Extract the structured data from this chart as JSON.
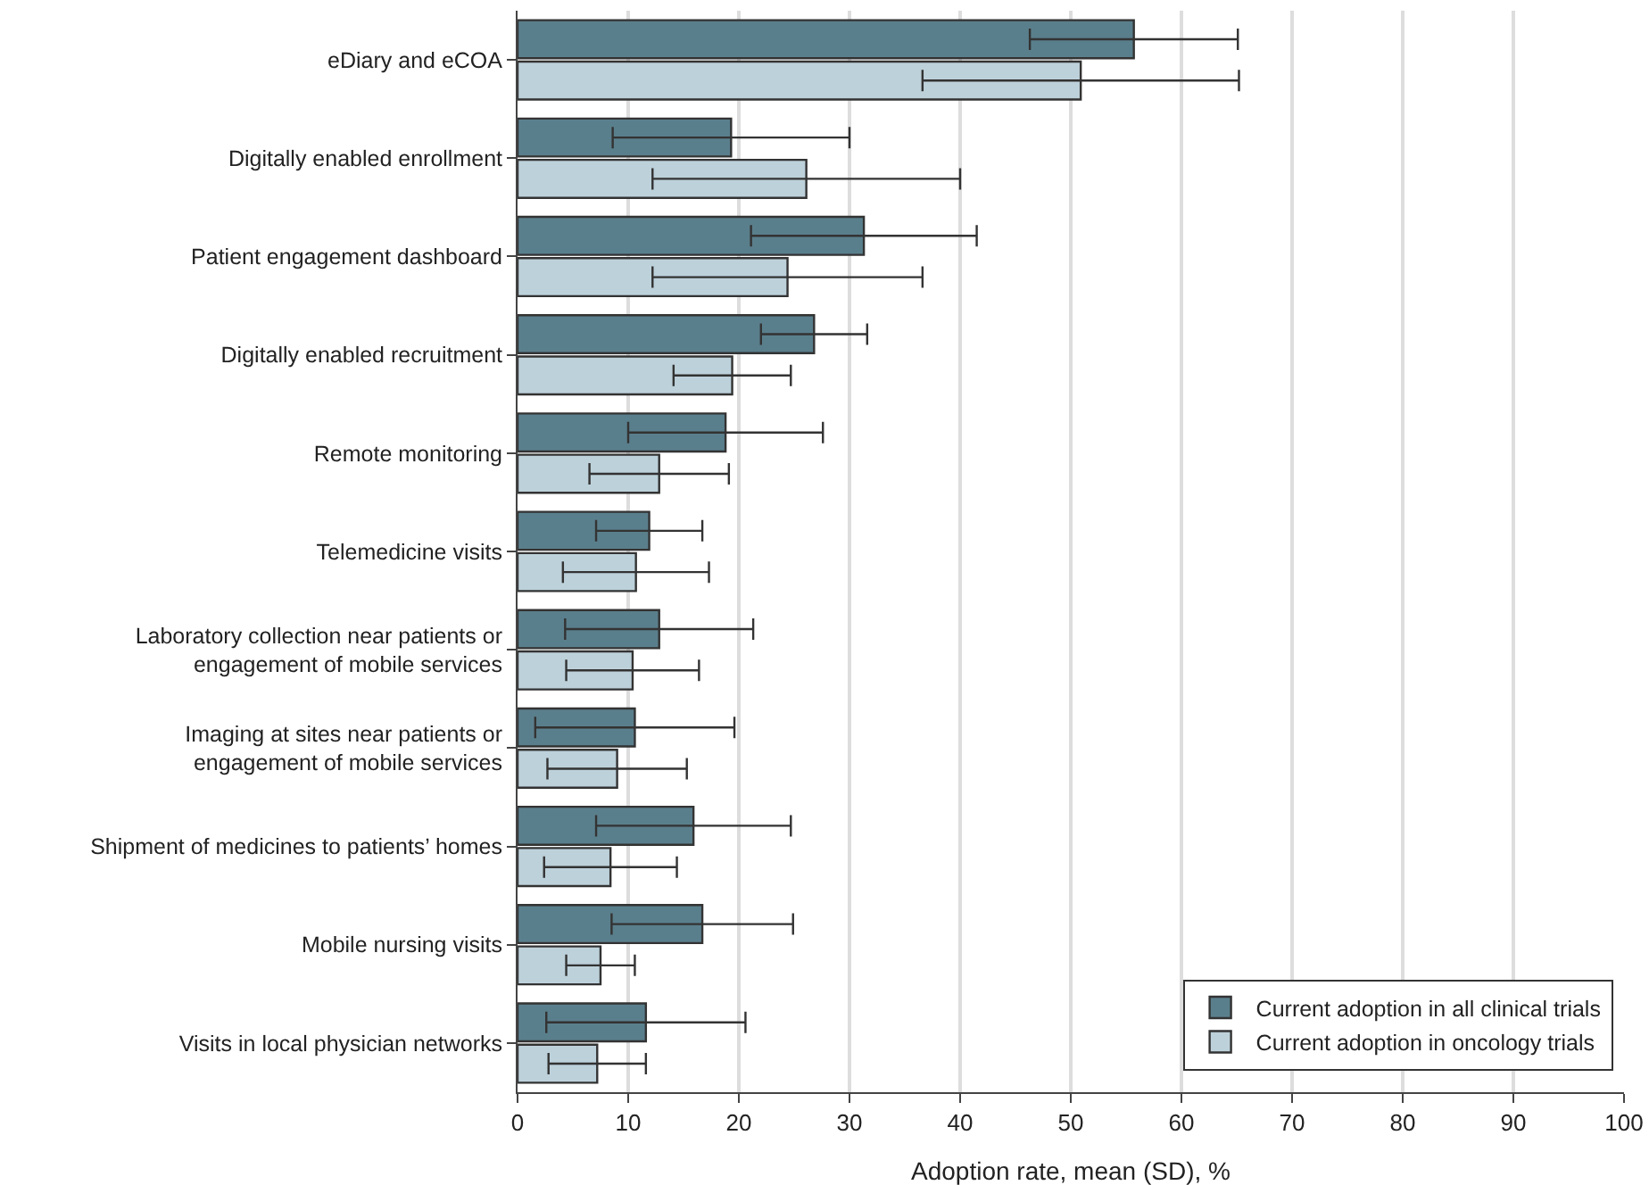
{
  "chart_data": {
    "type": "bar",
    "orientation": "horizontal",
    "xlabel": "Adoption rate, mean (SD), %",
    "categories": [
      "eDiary and eCOA",
      "Digitally enabled enrollment",
      "Patient engagement dashboard",
      "Digitally enabled recruitment",
      "Remote monitoring",
      "Telemedicine visits",
      "Laboratory collection near patients or engagement of mobile services",
      "Imaging at sites near patients or engagement of mobile services",
      "Shipment of medicines to patients’ homes",
      "Mobile nursing visits",
      "Visits in local physician networks"
    ],
    "series": [
      {
        "name": "Current adoption in all clinical trials",
        "color": "#5a7f8c",
        "values": [
          55.7,
          19.3,
          31.3,
          26.8,
          18.8,
          11.9,
          12.8,
          10.6,
          15.9,
          16.7,
          11.6
        ],
        "errors": [
          9.4,
          10.7,
          10.2,
          4.8,
          8.8,
          4.8,
          8.5,
          9.0,
          8.8,
          8.2,
          9.0
        ]
      },
      {
        "name": "Current adoption in oncology trials",
        "color": "#bdd1da",
        "values": [
          50.9,
          26.1,
          24.4,
          19.4,
          12.8,
          10.7,
          10.4,
          9.0,
          8.4,
          7.5,
          7.2
        ],
        "errors": [
          14.3,
          13.9,
          12.2,
          5.3,
          6.3,
          6.6,
          6.0,
          6.3,
          6.0,
          3.1,
          4.4
        ]
      }
    ],
    "xlim": [
      0,
      100
    ],
    "xticks": [
      0,
      10,
      20,
      30,
      40,
      50,
      60,
      70,
      80,
      90,
      100
    ],
    "grid": "x",
    "legend": "bottom right"
  }
}
